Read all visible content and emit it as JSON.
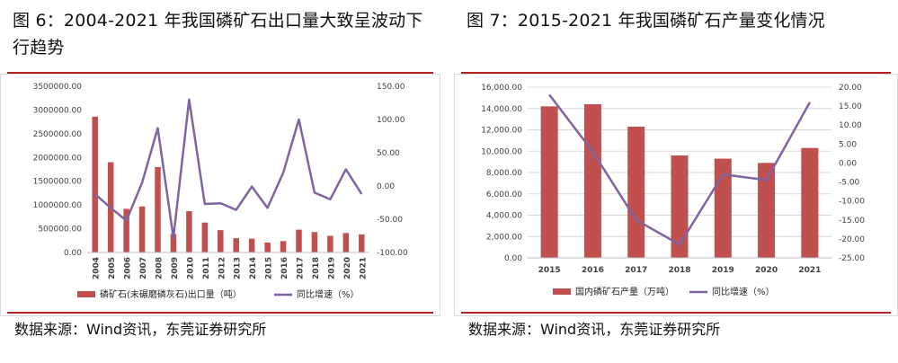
{
  "figures": [
    {
      "title": "图 6：2004-2021 年我国磷矿石出口量大致呈波动下行趋势",
      "source": "数据来源：Wind资讯，东莞证券研究所"
    },
    {
      "title": "图 7：2015-2021 年我国磷矿石产量变化情况",
      "source": "数据来源：Wind资讯，东莞证券研究所"
    }
  ],
  "colors": {
    "bar": "#c0504d",
    "line": "#8064a2",
    "rule": "#b22222",
    "grid": "#d9d9d9"
  },
  "chart_data": [
    {
      "type": "bar",
      "combo_with": "line",
      "categories": [
        "2004",
        "2005",
        "2006",
        "2007",
        "2008",
        "2009",
        "2010",
        "2011",
        "2012",
        "2013",
        "2014",
        "2015",
        "2016",
        "2017",
        "2018",
        "2019",
        "2020",
        "2021"
      ],
      "series": [
        {
          "name": "磷矿石(未碾磨磷灰石)出口量（吨）",
          "type": "bar",
          "axis": "left",
          "values": [
            2860000,
            1900000,
            920000,
            970000,
            1800000,
            390000,
            870000,
            630000,
            470000,
            300000,
            290000,
            210000,
            240000,
            480000,
            430000,
            350000,
            410000,
            380000
          ]
        },
        {
          "name": "同比增速（%）",
          "type": "line",
          "axis": "right",
          "values": [
            -12,
            -33,
            -52,
            5,
            87,
            -78,
            130,
            -27,
            -26,
            -36,
            -1,
            -33,
            20,
            100,
            -10,
            -20,
            25,
            -12
          ]
        }
      ],
      "y_left": {
        "min": 0,
        "max": 3500000,
        "step": 500000,
        "ticks": [
          "0.00",
          "500000.00",
          "1000000.00",
          "1500000.00",
          "2000000.00",
          "2500000.00",
          "3000000.00",
          "3500000.00"
        ]
      },
      "y_right": {
        "min": -100,
        "max": 150,
        "step": 50,
        "ticks": [
          "-100.00",
          "-50.00",
          "0.00",
          "50.00",
          "100.00",
          "150.00"
        ]
      },
      "legend": [
        "磷矿石(未碾磨磷灰石)出口量（吨）",
        "同比增速（%）"
      ],
      "legend_position": "bottom",
      "grid": false
    },
    {
      "type": "bar",
      "combo_with": "line",
      "categories": [
        "2015",
        "2016",
        "2017",
        "2018",
        "2019",
        "2020",
        "2021"
      ],
      "series": [
        {
          "name": "国内磷矿石产量（万吨）",
          "type": "bar",
          "axis": "left",
          "values": [
            14200,
            14400,
            12300,
            9600,
            9300,
            8900,
            10300
          ]
        },
        {
          "name": "同比增速（%）",
          "type": "line",
          "axis": "right",
          "values": [
            18,
            3,
            -15,
            -21.5,
            -3,
            -4.5,
            16
          ]
        }
      ],
      "y_left": {
        "min": 0,
        "max": 16000,
        "step": 2000,
        "ticks": [
          "0.00",
          "2,000.00",
          "4,000.00",
          "6,000.00",
          "8,000.00",
          "10,000.00",
          "12,000.00",
          "14,000.00",
          "16,000.00"
        ]
      },
      "y_right": {
        "min": -25,
        "max": 20,
        "step": 5,
        "ticks": [
          "-25.00",
          "-20.00",
          "-15.00",
          "-10.00",
          "-5.00",
          "0.00",
          "5.00",
          "10.00",
          "15.00",
          "20.00"
        ]
      },
      "legend": [
        "国内磷矿石产量（万吨）",
        "同比增速（%）"
      ],
      "legend_position": "bottom",
      "grid": true
    }
  ]
}
